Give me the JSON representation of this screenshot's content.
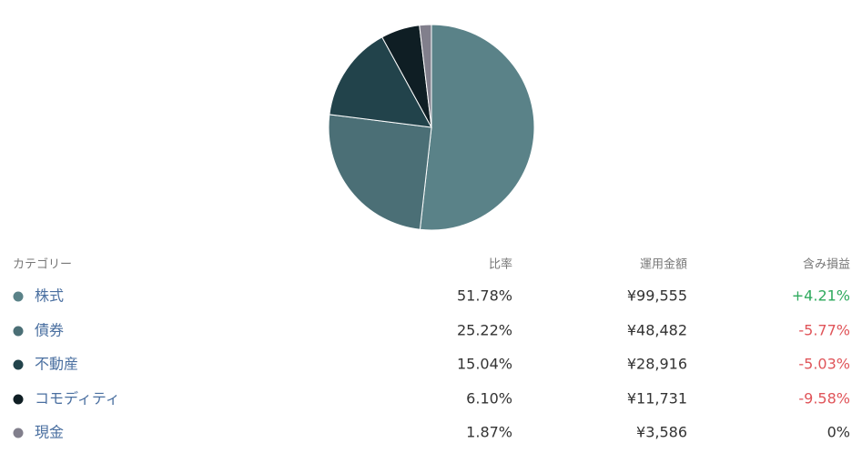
{
  "chart_data": {
    "type": "pie",
    "categories": [
      "株式",
      "債券",
      "不動産",
      "コモディティ",
      "現金"
    ],
    "values": [
      51.78,
      25.22,
      15.04,
      6.1,
      1.87
    ],
    "value_labels": [
      "51.78%",
      "25.22%",
      "15.04%",
      "6.10%",
      "1.87%"
    ],
    "colors": [
      "#5a8288",
      "#4b6f76",
      "#22434b",
      "#0f1e24",
      "#817f8c"
    ]
  },
  "table": {
    "header": [
      "カテゴリー",
      "比率",
      "運用金額",
      "含み損益"
    ],
    "rows": [
      {
        "amount": "¥99,555",
        "pnl": "+4.21%",
        "pnl_color": "#2faa5e"
      },
      {
        "amount": "¥48,482",
        "pnl": "-5.77%",
        "pnl_color": "#e0555a"
      },
      {
        "amount": "¥28,916",
        "pnl": "-5.03%",
        "pnl_color": "#e0555a"
      },
      {
        "amount": "¥11,731",
        "pnl": "-9.58%",
        "pnl_color": "#e0555a"
      },
      {
        "amount": "¥3,586",
        "pnl": "0%",
        "pnl_color": "#333333"
      }
    ]
  }
}
